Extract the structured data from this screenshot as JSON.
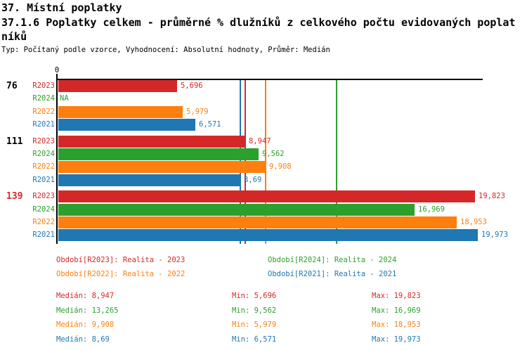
{
  "header": {
    "title_line1": "37. Místní poplatky",
    "title_line2": "37.1.6 Poplatky celkem - průměrné % dlužníků z celkového počtu evidovaných poplat",
    "title_line3": "níků",
    "meta_line": "Typ: Počítaný podle vzorce, Vyhodnocení: Absolutní hodnoty, Průměr: Medián"
  },
  "colors": {
    "red": "#d62728",
    "green": "#2ca02c",
    "orange": "#ff7f0e",
    "blue": "#1f77b4",
    "axis": "#000000",
    "group_label_highlight": "#d62728"
  },
  "chart_data": {
    "type": "bar",
    "orientation": "horizontal",
    "title": "37.1.6 Poplatky celkem - průměrné % dlužníků z celkového počtu evidovaných poplatníků",
    "x_axis": {
      "zero_label": "0",
      "range": [
        0,
        20.2
      ],
      "ticks_shown": [
        "0"
      ]
    },
    "categories": [
      "76",
      "111",
      "139"
    ],
    "category_colors": [
      "#000000",
      "#000000",
      "#d62728"
    ],
    "na_label": "NA",
    "series": [
      {
        "name": "R2023",
        "color": "#d62728",
        "values": [
          5.696,
          8.947,
          19.823
        ],
        "value_labels": [
          "5,696",
          "8,947",
          "19,823"
        ],
        "median": 8.947
      },
      {
        "name": "R2024",
        "color": "#2ca02c",
        "values": [
          null,
          9.562,
          16.969
        ],
        "value_labels": [
          "NA",
          "9,562",
          "16,969"
        ],
        "median": 13.265
      },
      {
        "name": "R2022",
        "color": "#ff7f0e",
        "values": [
          5.979,
          9.908,
          18.953
        ],
        "value_labels": [
          "5,979",
          "9,908",
          "18,953"
        ],
        "median": 9.908
      },
      {
        "name": "R2021",
        "color": "#1f77b4",
        "values": [
          6.571,
          8.69,
          19.973
        ],
        "value_labels": [
          "6,571",
          "8,69",
          "19,973"
        ],
        "median": 8.69
      }
    ],
    "legend_position": "below",
    "grid": "median-lines-only"
  },
  "legend": {
    "items": [
      {
        "label": "Období[R2023]: Realita - 2023",
        "color": "#d62728"
      },
      {
        "label": "Období[R2024]: Realita - 2024",
        "color": "#2ca02c"
      },
      {
        "label": "Období[R2022]: Realita - 2022",
        "color": "#ff7f0e"
      },
      {
        "label": "Období[R2021]: Realita - 2021",
        "color": "#1f77b4"
      }
    ]
  },
  "stats": {
    "rows": [
      {
        "median": "Medián: 8,947",
        "min": "Min: 5,696",
        "max": "Max: 19,823",
        "color": "#d62728"
      },
      {
        "median": "Medián: 13,265",
        "min": "Min: 9,562",
        "max": "Max: 16,969",
        "color": "#2ca02c"
      },
      {
        "median": "Medián: 9,908",
        "min": "Min: 5,979",
        "max": "Max: 18,953",
        "color": "#ff7f0e"
      },
      {
        "median": "Medián: 8,69",
        "min": "Min: 6,571",
        "max": "Max: 19,973",
        "color": "#1f77b4"
      }
    ]
  }
}
